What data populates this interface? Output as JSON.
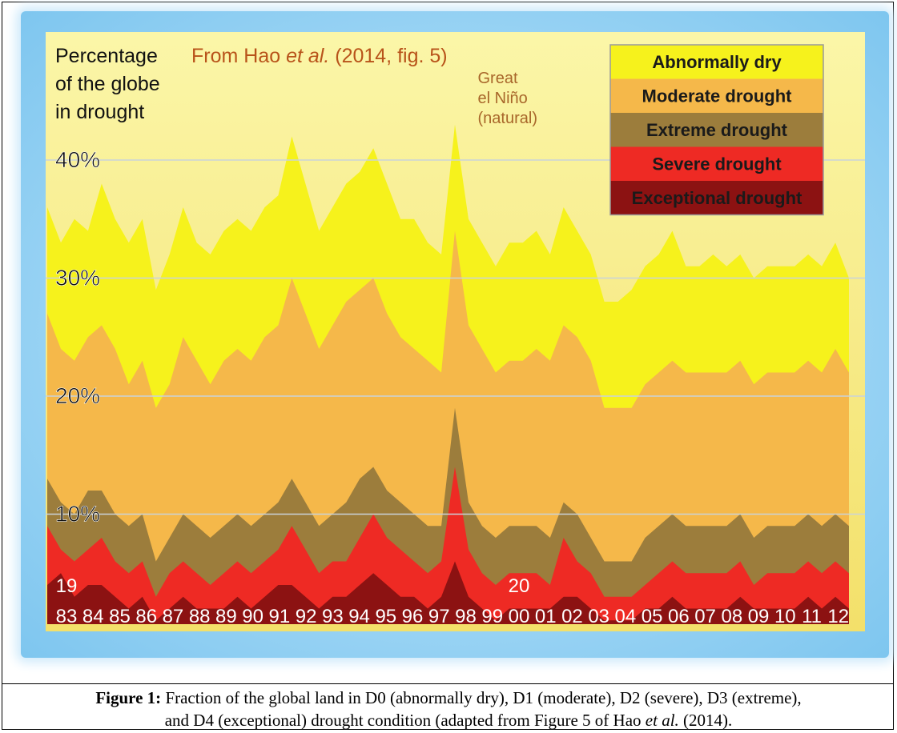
{
  "chart_data": {
    "type": "area",
    "stacked": true,
    "ylabel": "Percentage of the globe in drought",
    "source_note_prefix": "From Hao ",
    "source_note_italic": "et al.",
    "source_note_suffix": " (2014, fig. 5)",
    "annotation": {
      "lines": [
        "Great",
        "el Niño",
        "(natural)"
      ],
      "year": "98"
    },
    "ylim": [
      0,
      50
    ],
    "yticks": [
      10,
      20,
      30,
      40
    ],
    "ytick_labels": [
      "10%",
      "20%",
      "30%",
      "40%"
    ],
    "xlim": [
      1983,
      2013
    ],
    "century_labels": [
      {
        "text": "19",
        "at": "83"
      },
      {
        "text": "20",
        "at": "00"
      }
    ],
    "x_tick_labels": [
      "83",
      "84",
      "85",
      "86",
      "87",
      "88",
      "89",
      "90",
      "91",
      "92",
      "93",
      "94",
      "95",
      "96",
      "97",
      "98",
      "99",
      "00",
      "01",
      "02",
      "03",
      "04",
      "05",
      "06",
      "07",
      "08",
      "09",
      "10",
      "11",
      "12"
    ],
    "grid": true,
    "legend_placement": "top-right",
    "legend": [
      {
        "label": "Abnormally dry",
        "color": "#f6f21c"
      },
      {
        "label": "Moderate drought",
        "color": "#f5b84a"
      },
      {
        "label": "Extreme drought",
        "color": "#9c7d3c"
      },
      {
        "label": "Severe drought",
        "color": "#ee2a24"
      },
      {
        "label": "Exceptional drought",
        "color": "#8c1212"
      }
    ],
    "x": [
      1983.0,
      1983.5,
      1984.0,
      1984.5,
      1985.0,
      1985.5,
      1986.0,
      1986.5,
      1987.0,
      1987.5,
      1988.0,
      1988.5,
      1989.0,
      1989.5,
      1990.0,
      1990.5,
      1991.0,
      1991.5,
      1992.0,
      1992.5,
      1993.0,
      1993.5,
      1994.0,
      1994.5,
      1995.0,
      1995.5,
      1996.0,
      1996.5,
      1997.0,
      1997.5,
      1998.0,
      1998.5,
      1999.0,
      1999.5,
      2000.0,
      2000.5,
      2001.0,
      2001.5,
      2002.0,
      2002.5,
      2003.0,
      2003.5,
      2004.0,
      2004.5,
      2005.0,
      2005.5,
      2006.0,
      2006.5,
      2007.0,
      2007.5,
      2008.0,
      2008.5,
      2009.0,
      2009.5,
      2010.0,
      2010.5,
      2011.0,
      2011.5,
      2012.0,
      2012.5
    ],
    "series": [
      {
        "name": "Exceptional drought",
        "color": "#8c1212",
        "values": [
          4,
          5,
          3,
          4,
          4,
          3,
          2,
          3,
          1,
          2,
          3,
          2,
          2,
          2,
          3,
          2,
          3,
          4,
          4,
          3,
          2,
          3,
          3,
          4,
          5,
          4,
          3,
          3,
          2,
          3,
          6,
          3,
          2,
          1,
          2,
          2,
          2,
          2,
          3,
          3,
          2,
          1,
          1,
          1,
          2,
          2,
          3,
          2,
          2,
          2,
          2,
          3,
          2,
          2,
          2,
          2,
          3,
          2,
          3,
          2
        ]
      },
      {
        "name": "Severe drought",
        "color": "#ee2a24",
        "values": [
          9,
          7,
          6,
          7,
          8,
          6,
          5,
          6,
          3,
          5,
          6,
          5,
          4,
          5,
          6,
          5,
          6,
          7,
          9,
          7,
          5,
          6,
          6,
          8,
          10,
          8,
          7,
          6,
          5,
          6,
          14,
          7,
          5,
          4,
          5,
          5,
          5,
          4,
          8,
          6,
          5,
          3,
          3,
          3,
          4,
          5,
          6,
          5,
          5,
          5,
          5,
          6,
          4,
          5,
          5,
          5,
          6,
          5,
          6,
          5
        ]
      },
      {
        "name": "Extreme drought",
        "color": "#9c7d3c",
        "values": [
          13,
          11,
          10,
          12,
          12,
          10,
          9,
          10,
          6,
          8,
          10,
          9,
          8,
          9,
          10,
          9,
          10,
          11,
          13,
          11,
          9,
          10,
          11,
          13,
          14,
          12,
          11,
          10,
          9,
          9,
          19,
          11,
          9,
          8,
          9,
          9,
          9,
          8,
          11,
          10,
          8,
          6,
          6,
          6,
          8,
          9,
          10,
          9,
          9,
          9,
          9,
          10,
          8,
          9,
          9,
          9,
          10,
          9,
          10,
          9
        ]
      },
      {
        "name": "Moderate drought",
        "color": "#f5b84a",
        "values": [
          27,
          24,
          23,
          25,
          26,
          24,
          21,
          23,
          19,
          21,
          25,
          23,
          21,
          23,
          24,
          23,
          25,
          26,
          30,
          27,
          24,
          26,
          28,
          29,
          30,
          27,
          25,
          24,
          23,
          22,
          34,
          26,
          24,
          22,
          23,
          23,
          24,
          23,
          26,
          25,
          23,
          19,
          19,
          19,
          21,
          22,
          23,
          22,
          22,
          22,
          22,
          23,
          21,
          22,
          22,
          22,
          23,
          22,
          24,
          22
        ]
      },
      {
        "name": "Abnormally dry",
        "color": "#f6f21c",
        "values": [
          36,
          33,
          35,
          34,
          38,
          35,
          33,
          35,
          29,
          32,
          36,
          33,
          32,
          34,
          35,
          34,
          36,
          37,
          42,
          38,
          34,
          36,
          38,
          39,
          41,
          38,
          35,
          35,
          33,
          32,
          43,
          35,
          33,
          31,
          33,
          33,
          34,
          32,
          36,
          34,
          32,
          28,
          28,
          29,
          31,
          32,
          34,
          31,
          31,
          32,
          31,
          32,
          30,
          31,
          31,
          31,
          32,
          31,
          33,
          30
        ]
      }
    ]
  },
  "caption": {
    "label": "Figure 1:",
    "text_a": "  Fraction of the global land in D0 (abnormally dry), D1 (moderate), D2 (severe), D3 (extreme),",
    "text_b": "and D4 (exceptional) drought condition (adapted from Figure 5 of Hao ",
    "text_italic": "et al.",
    "text_c": " (2014)."
  }
}
